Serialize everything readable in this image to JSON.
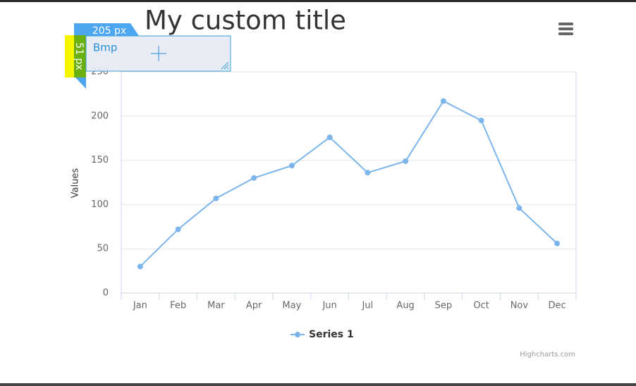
{
  "chart_data": {
    "type": "line",
    "title": "My custom title",
    "y_axis_label": "Values",
    "categories": [
      "Jan",
      "Feb",
      "Mar",
      "Apr",
      "May",
      "Jun",
      "Jul",
      "Aug",
      "Sep",
      "Oct",
      "Nov",
      "Dec"
    ],
    "series": [
      {
        "name": "Series 1",
        "color": "#7cb5ec",
        "values": [
          30,
          72,
          107,
          130,
          144,
          176,
          136,
          149,
          217,
          195,
          96,
          56
        ]
      }
    ],
    "ylim": [
      0,
      250
    ],
    "yticks": [
      0,
      50,
      100,
      150,
      200,
      250
    ],
    "grid": true,
    "credits": "Highcharts.com"
  },
  "overlay": {
    "width_label": "205 px",
    "height_label": "51 px",
    "box_label": "Bmp"
  }
}
